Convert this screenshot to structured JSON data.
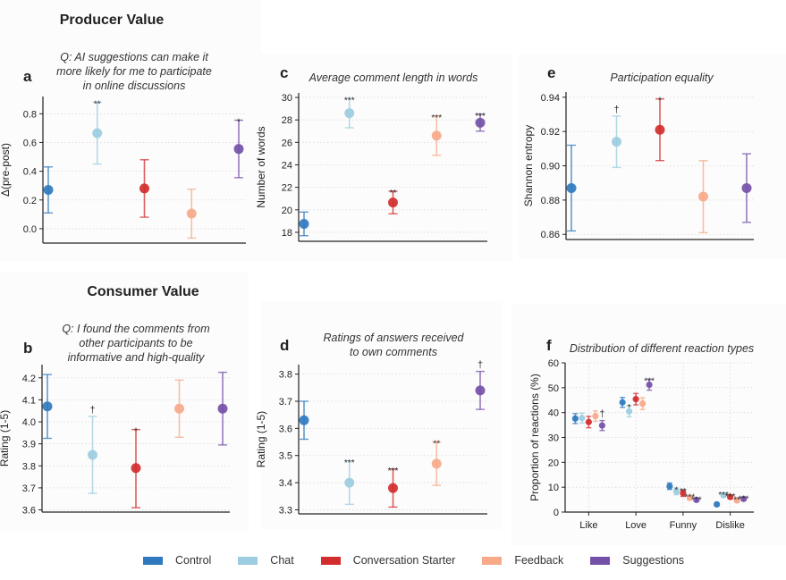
{
  "sections": {
    "producer": "Producer Value",
    "consumer": "Consumer Value"
  },
  "groups": [
    {
      "name": "Control",
      "color": "#2f7abf"
    },
    {
      "name": "Chat",
      "color": "#9ccde0"
    },
    {
      "name": "Conversation Starter",
      "color": "#d22c2c"
    },
    {
      "name": "Feedback",
      "color": "#f7a98a"
    },
    {
      "name": "Suggestions",
      "color": "#7550a8"
    }
  ],
  "chart_data": [
    {
      "id": "a",
      "letter": "a",
      "type": "scatter",
      "title": "Q: AI suggestions can make it more likely for me to participate in online discussions",
      "title_lines": [
        "Q: AI suggestions can make it",
        "more likely for me to participate",
        "in online discussions"
      ],
      "xlabel": "",
      "ylabel": "Δ(pre-post)",
      "ylim": [
        -0.1,
        0.92
      ],
      "yticks": [
        0.0,
        0.2,
        0.4,
        0.6,
        0.8
      ],
      "ytick_labels": [
        "0.0",
        "0.2",
        "0.4",
        "0.6",
        "0.8"
      ],
      "grid": "horizontal-dotted",
      "series": [
        {
          "name": "Control",
          "value": 0.27,
          "lo": 0.11,
          "hi": 0.43,
          "sig": ""
        },
        {
          "name": "Chat",
          "value": 0.665,
          "lo": 0.45,
          "hi": 0.88,
          "sig": "**"
        },
        {
          "name": "Conversation Starter",
          "value": 0.28,
          "lo": 0.08,
          "hi": 0.48,
          "sig": ""
        },
        {
          "name": "Feedback",
          "value": 0.105,
          "lo": -0.065,
          "hi": 0.275,
          "sig": ""
        },
        {
          "name": "Suggestions",
          "value": 0.555,
          "lo": 0.355,
          "hi": 0.755,
          "sig": "*"
        }
      ]
    },
    {
      "id": "c",
      "letter": "c",
      "type": "scatter",
      "title": "Average comment length in words",
      "title_lines": [
        "Average comment length in words"
      ],
      "xlabel": "",
      "ylabel": "Number of words",
      "ylim": [
        17.2,
        30.4
      ],
      "yticks": [
        18,
        20,
        22,
        24,
        26,
        28,
        30
      ],
      "ytick_labels": [
        "18",
        "20",
        "22",
        "24",
        "26",
        "28",
        "30"
      ],
      "grid": "horizontal-dotted",
      "series": [
        {
          "name": "Control",
          "value": 18.75,
          "lo": 17.7,
          "hi": 19.8,
          "sig": ""
        },
        {
          "name": "Chat",
          "value": 28.6,
          "lo": 27.3,
          "hi": 29.9,
          "sig": "***"
        },
        {
          "name": "Conversation Starter",
          "value": 20.65,
          "lo": 19.65,
          "hi": 21.65,
          "sig": "**"
        },
        {
          "name": "Feedback",
          "value": 26.6,
          "lo": 24.85,
          "hi": 28.35,
          "sig": "***"
        },
        {
          "name": "Suggestions",
          "value": 27.75,
          "lo": 27.0,
          "hi": 28.5,
          "sig": "***"
        }
      ]
    },
    {
      "id": "e",
      "letter": "e",
      "type": "scatter",
      "title": "Participation equality",
      "title_lines": [
        "Participation equality"
      ],
      "xlabel": "",
      "ylabel": "Shannon entropy",
      "ylim": [
        0.857,
        0.943
      ],
      "yticks": [
        0.86,
        0.88,
        0.9,
        0.92,
        0.94
      ],
      "ytick_labels": [
        "0.86",
        "0.88",
        "0.90",
        "0.92",
        "0.94"
      ],
      "grid": "horizontal-dotted",
      "series": [
        {
          "name": "Control",
          "value": 0.887,
          "lo": 0.862,
          "hi": 0.912,
          "sig": ""
        },
        {
          "name": "Chat",
          "value": 0.914,
          "lo": 0.899,
          "hi": 0.929,
          "sig": "†"
        },
        {
          "name": "Conversation Starter",
          "value": 0.921,
          "lo": 0.903,
          "hi": 0.939,
          "sig": "*"
        },
        {
          "name": "Feedback",
          "value": 0.882,
          "lo": 0.861,
          "hi": 0.903,
          "sig": ""
        },
        {
          "name": "Suggestions",
          "value": 0.887,
          "lo": 0.867,
          "hi": 0.907,
          "sig": ""
        }
      ]
    },
    {
      "id": "b",
      "letter": "b",
      "type": "scatter",
      "title": "Q: I found the comments from other participants to be informative and high-quality",
      "title_lines": [
        "Q: I found the comments from",
        "other participants to be",
        "informative and high-quality"
      ],
      "xlabel": "",
      "ylabel": "Rating (1-5)",
      "ylim": [
        3.59,
        4.26
      ],
      "yticks": [
        3.6,
        3.7,
        3.8,
        3.9,
        4.0,
        4.1,
        4.2
      ],
      "ytick_labels": [
        "3.6",
        "3.7",
        "3.8",
        "3.9",
        "4.0",
        "4.1",
        "4.2"
      ],
      "grid": "horizontal-dotted",
      "series": [
        {
          "name": "Control",
          "value": 4.07,
          "lo": 3.925,
          "hi": 4.215,
          "sig": ""
        },
        {
          "name": "Chat",
          "value": 3.85,
          "lo": 3.675,
          "hi": 4.025,
          "sig": "†"
        },
        {
          "name": "Conversation Starter",
          "value": 3.79,
          "lo": 3.61,
          "hi": 3.965,
          "sig": "*"
        },
        {
          "name": "Feedback",
          "value": 4.06,
          "lo": 3.93,
          "hi": 4.19,
          "sig": ""
        },
        {
          "name": "Suggestions",
          "value": 4.06,
          "lo": 3.895,
          "hi": 4.225,
          "sig": ""
        }
      ]
    },
    {
      "id": "d",
      "letter": "d",
      "type": "scatter",
      "title": "Ratings of answers received to own comments",
      "title_lines": [
        "Ratings of answers received",
        "to own comments"
      ],
      "xlabel": "",
      "ylabel": "Rating (1-5)",
      "ylim": [
        3.285,
        3.835
      ],
      "yticks": [
        3.3,
        3.4,
        3.5,
        3.6,
        3.7,
        3.8
      ],
      "ytick_labels": [
        "3.3",
        "3.4",
        "3.5",
        "3.6",
        "3.7",
        "3.8"
      ],
      "grid": "horizontal-dotted",
      "series": [
        {
          "name": "Control",
          "value": 3.63,
          "lo": 3.56,
          "hi": 3.7,
          "sig": ""
        },
        {
          "name": "Chat",
          "value": 3.4,
          "lo": 3.32,
          "hi": 3.48,
          "sig": "***"
        },
        {
          "name": "Conversation Starter",
          "value": 3.38,
          "lo": 3.31,
          "hi": 3.45,
          "sig": "***"
        },
        {
          "name": "Feedback",
          "value": 3.47,
          "lo": 3.39,
          "hi": 3.55,
          "sig": "**"
        },
        {
          "name": "Suggestions",
          "value": 3.74,
          "lo": 3.67,
          "hi": 3.81,
          "sig": "†"
        }
      ]
    },
    {
      "id": "f",
      "letter": "f",
      "type": "scatter",
      "title": "Distribution of different reaction types",
      "title_lines": [
        "Distribution of different reaction types"
      ],
      "xlabel": "",
      "ylabel": "Proportion of reactions (%)",
      "ylim": [
        0,
        60
      ],
      "yticks": [
        0,
        10,
        20,
        30,
        40,
        50,
        60
      ],
      "ytick_labels": [
        "0",
        "10",
        "20",
        "30",
        "40",
        "50",
        "60"
      ],
      "grid": "both-dotted",
      "categories": [
        "Like",
        "Love",
        "Funny",
        "Dislike"
      ],
      "series": [
        {
          "name": "Control",
          "values": [
            37.6,
            44.1,
            10.4,
            3.1
          ],
          "lo": [
            35.6,
            42.1,
            9.1,
            2.5
          ],
          "hi": [
            39.6,
            46.1,
            11.7,
            3.7
          ],
          "sig": [
            "",
            "",
            "",
            ""
          ]
        },
        {
          "name": "Chat",
          "values": [
            37.8,
            40.5,
            8.3,
            6.8
          ],
          "lo": [
            35.8,
            38.3,
            7.0,
            6.0
          ],
          "hi": [
            39.8,
            42.7,
            9.6,
            7.6
          ],
          "sig": [
            "",
            "*",
            "*",
            "***"
          ]
        },
        {
          "name": "Conversation Starter",
          "values": [
            36.2,
            45.4,
            7.6,
            6.1
          ],
          "lo": [
            33.9,
            43.1,
            6.3,
            5.3
          ],
          "hi": [
            38.5,
            47.7,
            8.9,
            6.9
          ],
          "sig": [
            "",
            "",
            "**",
            "***"
          ]
        },
        {
          "name": "Feedback",
          "values": [
            38.6,
            43.6,
            5.7,
            4.7
          ],
          "lo": [
            36.5,
            41.2,
            4.8,
            3.9
          ],
          "hi": [
            40.7,
            46.0,
            6.6,
            5.5
          ],
          "sig": [
            "",
            "",
            "***",
            "**"
          ]
        },
        {
          "name": "Suggestions",
          "values": [
            34.8,
            51.2,
            4.9,
            5.3
          ],
          "lo": [
            32.8,
            49.0,
            4.2,
            4.6
          ],
          "hi": [
            36.8,
            53.4,
            5.6,
            6.0
          ],
          "sig": [
            "†",
            "***",
            "***",
            "***"
          ]
        }
      ]
    }
  ]
}
